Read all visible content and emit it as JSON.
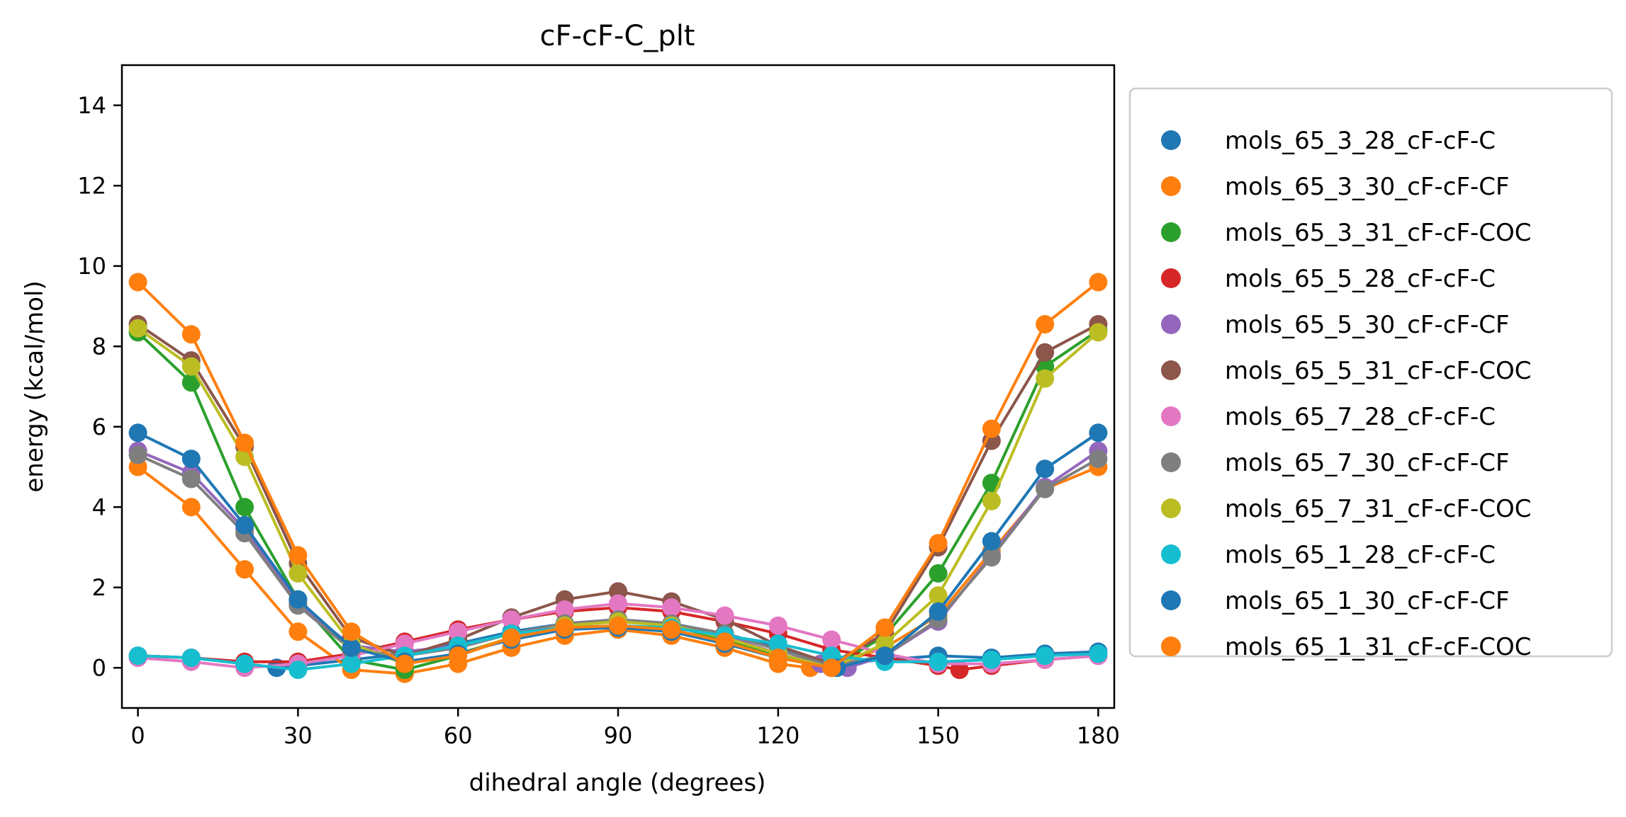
{
  "chart_data": {
    "type": "line",
    "title": "cF-cF-C_plt",
    "xlabel": "dihedral angle (degrees)",
    "ylabel": "energy (kcal/mol)",
    "xlim": [
      -3,
      183
    ],
    "ylim": [
      -1,
      15
    ],
    "xticks": [
      0,
      30,
      60,
      90,
      120,
      150,
      180
    ],
    "yticks": [
      0,
      2,
      4,
      6,
      8,
      10,
      12,
      14
    ],
    "grid": false,
    "legend_position": "outside-right",
    "series": [
      {
        "name": "mols_65_3_28_cF-cF-C",
        "color": "#1f77b4",
        "x": [
          0,
          10,
          20,
          26,
          30,
          40,
          50,
          60,
          70,
          80,
          90,
          100,
          110,
          120,
          130,
          140,
          150,
          160,
          170,
          180
        ],
        "y": [
          0.3,
          0.25,
          0.1,
          0.0,
          0.05,
          0.2,
          0.35,
          0.6,
          0.9,
          1.1,
          1.2,
          1.1,
          0.85,
          0.5,
          0.1,
          0.2,
          0.3,
          0.25,
          0.35,
          0.4
        ]
      },
      {
        "name": "mols_65_3_30_cF-cF-CF",
        "color": "#ff7f0e",
        "x": [
          0,
          10,
          20,
          30,
          40,
          50,
          60,
          70,
          80,
          90,
          100,
          110,
          120,
          126,
          130,
          140,
          150,
          160,
          170,
          180
        ],
        "y": [
          5.0,
          4.0,
          2.45,
          0.9,
          -0.05,
          -0.15,
          0.1,
          0.5,
          0.8,
          0.95,
          0.8,
          0.5,
          0.1,
          0.0,
          0.05,
          0.5,
          1.3,
          2.9,
          4.45,
          5.0
        ]
      },
      {
        "name": "mols_65_3_31_cF-cF-COC",
        "color": "#2ca02c",
        "x": [
          0,
          10,
          20,
          30,
          40,
          50,
          60,
          70,
          80,
          90,
          100,
          110,
          120,
          130,
          140,
          150,
          160,
          170,
          180
        ],
        "y": [
          8.35,
          7.1,
          4.0,
          1.7,
          0.2,
          -0.05,
          0.3,
          0.75,
          1.05,
          1.15,
          1.05,
          0.7,
          0.3,
          0.0,
          0.8,
          2.35,
          4.6,
          7.5,
          8.4
        ]
      },
      {
        "name": "mols_65_5_28_cF-cF-C",
        "color": "#d62728",
        "x": [
          0,
          10,
          20,
          30,
          40,
          50,
          60,
          70,
          80,
          90,
          100,
          110,
          120,
          130,
          140,
          150,
          154,
          160,
          170,
          180
        ],
        "y": [
          0.3,
          0.25,
          0.15,
          0.15,
          0.35,
          0.65,
          0.95,
          1.2,
          1.4,
          1.5,
          1.4,
          1.15,
          0.85,
          0.45,
          0.25,
          0.05,
          -0.05,
          0.05,
          0.2,
          0.3
        ]
      },
      {
        "name": "mols_65_5_30_cF-cF-CF",
        "color": "#9467bd",
        "x": [
          0,
          10,
          20,
          30,
          40,
          50,
          60,
          70,
          80,
          90,
          100,
          110,
          120,
          128,
          133,
          140,
          150,
          160,
          170,
          180
        ],
        "y": [
          5.4,
          4.85,
          3.45,
          1.6,
          0.55,
          0.4,
          0.55,
          0.85,
          1.1,
          1.2,
          1.1,
          0.8,
          0.35,
          0.1,
          0.0,
          0.3,
          1.15,
          2.8,
          4.5,
          5.4
        ]
      },
      {
        "name": "mols_65_5_31_cF-cF-COC",
        "color": "#8c564b",
        "x": [
          0,
          10,
          20,
          30,
          40,
          50,
          60,
          70,
          80,
          90,
          100,
          110,
          120,
          130,
          140,
          150,
          160,
          170,
          180
        ],
        "y": [
          8.55,
          7.65,
          5.5,
          2.6,
          0.75,
          0.3,
          0.7,
          1.25,
          1.7,
          1.9,
          1.65,
          1.2,
          0.55,
          0.1,
          0.85,
          3.0,
          5.65,
          7.85,
          8.55
        ]
      },
      {
        "name": "mols_65_7_28_cF-cF-C",
        "color": "#e377c2",
        "x": [
          0,
          10,
          20,
          30,
          40,
          50,
          60,
          70,
          80,
          90,
          100,
          110,
          120,
          130,
          140,
          150,
          160,
          170,
          180
        ],
        "y": [
          0.25,
          0.15,
          0.0,
          0.1,
          0.3,
          0.6,
          0.9,
          1.2,
          1.45,
          1.6,
          1.5,
          1.3,
          1.05,
          0.7,
          0.35,
          0.1,
          0.1,
          0.2,
          0.3
        ]
      },
      {
        "name": "mols_65_7_30_cF-cF-CF",
        "color": "#7f7f7f",
        "x": [
          0,
          10,
          20,
          30,
          40,
          50,
          60,
          70,
          80,
          90,
          100,
          110,
          120,
          130,
          140,
          150,
          160,
          170,
          180
        ],
        "y": [
          5.3,
          4.7,
          3.35,
          1.55,
          0.45,
          0.3,
          0.5,
          0.85,
          1.1,
          1.2,
          1.1,
          0.85,
          0.45,
          0.05,
          0.3,
          1.2,
          2.75,
          4.45,
          5.2
        ]
      },
      {
        "name": "mols_65_7_31_cF-cF-COC",
        "color": "#bcbd22",
        "x": [
          0,
          10,
          20,
          30,
          40,
          50,
          60,
          70,
          80,
          90,
          100,
          110,
          120,
          130,
          140,
          150,
          160,
          170,
          180
        ],
        "y": [
          8.45,
          7.5,
          5.25,
          2.35,
          0.6,
          0.1,
          0.35,
          0.75,
          1.05,
          1.15,
          1.05,
          0.75,
          0.35,
          0.0,
          0.6,
          1.8,
          4.15,
          7.2,
          8.35
        ]
      },
      {
        "name": "mols_65_1_28_cF-cF-C",
        "color": "#17becf",
        "x": [
          0,
          10,
          20,
          30,
          40,
          50,
          60,
          70,
          80,
          90,
          100,
          110,
          120,
          130,
          140,
          150,
          160,
          170,
          180
        ],
        "y": [
          0.3,
          0.25,
          0.1,
          -0.05,
          0.1,
          0.3,
          0.55,
          0.85,
          1.0,
          1.05,
          1.0,
          0.8,
          0.6,
          0.3,
          0.15,
          0.15,
          0.2,
          0.3,
          0.35
        ]
      },
      {
        "name": "mols_65_1_30_cF-cF-CF",
        "color": "#1f77b4",
        "x": [
          0,
          10,
          20,
          30,
          40,
          50,
          60,
          70,
          80,
          90,
          100,
          110,
          120,
          130,
          131,
          140,
          150,
          160,
          170,
          180
        ],
        "y": [
          5.85,
          5.2,
          3.55,
          1.7,
          0.5,
          0.15,
          0.35,
          0.7,
          0.95,
          1.0,
          0.9,
          0.6,
          0.25,
          0.0,
          0.0,
          0.3,
          1.4,
          3.15,
          4.95,
          5.85
        ]
      },
      {
        "name": "mols_65_1_31_cF-cF-COC",
        "color": "#ff7f0e",
        "x": [
          0,
          10,
          20,
          30,
          40,
          50,
          60,
          70,
          80,
          90,
          100,
          110,
          120,
          130,
          140,
          150,
          160,
          170,
          180
        ],
        "y": [
          9.6,
          8.3,
          5.6,
          2.8,
          0.9,
          0.1,
          0.3,
          0.75,
          1.0,
          1.05,
          0.95,
          0.65,
          0.25,
          0.0,
          1.0,
          3.1,
          5.95,
          8.55,
          9.6
        ]
      }
    ]
  }
}
